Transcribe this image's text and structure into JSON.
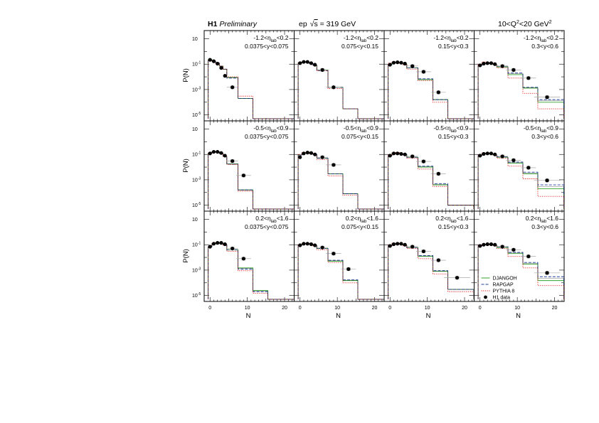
{
  "header": {
    "experiment": "H1",
    "status": "Preliminary",
    "beam": "ep",
    "energy_prefix": "s",
    "energy_value": " = 319 GeV",
    "q2_left": "10<Q",
    "q2_sup": "2",
    "q2_right": "<20 GeV",
    "q2_unit_sup": "2"
  },
  "legend": {
    "entries": [
      "DJANGOH",
      "RAPGAP",
      "PYTHIA 8",
      "H1 data"
    ]
  },
  "colors": {
    "djangoh": "#33a02c",
    "rapgap": "#1f3f9f",
    "pythia": "#e31a1c",
    "data": "#000000",
    "error_band": "#c8c8c8"
  },
  "chart_data": {
    "type": "multi-panel histogram with data points",
    "grid": false,
    "legend_position": "bottom-right panel",
    "xlabel": "N",
    "ylabel": "P(N)",
    "yscale": "log",
    "xlim": [
      -1,
      22
    ],
    "ylim": [
      5e-06,
      30
    ],
    "x_ticks": [
      0,
      10,
      20
    ],
    "y_ticks": [
      "10^-5",
      "10^-3",
      "10^-1",
      "10"
    ],
    "bin_edges": [
      -0.5,
      0.5,
      1.5,
      2.5,
      3.5,
      4.5,
      7.5,
      11.5,
      15.5,
      22.5
    ],
    "series_names": [
      "DJANGOH",
      "RAPGAP",
      "PYTHIA 8",
      "H1 data"
    ],
    "panels": [
      {
        "row": 0,
        "col": 0,
        "eta_lo": "-1.2",
        "eta_hi": "0.2",
        "y_range": "0.0375<y<0.075",
        "djangoh": [
          0.22,
          0.17,
          0.12,
          0.07,
          0.04,
          0.009,
          0.0002,
          0,
          0
        ],
        "rapgap": [
          0.22,
          0.17,
          0.12,
          0.07,
          0.04,
          0.008,
          0.0002,
          0,
          0
        ],
        "pythia": [
          0.22,
          0.17,
          0.12,
          0.07,
          0.04,
          0.01,
          0.0003,
          0,
          0
        ],
        "data_x": [
          0,
          1,
          2,
          3,
          4,
          6
        ],
        "data_y": [
          0.22,
          0.17,
          0.11,
          0.05,
          0.012,
          0.0015
        ]
      },
      {
        "row": 0,
        "col": 1,
        "eta_lo": "-1.2",
        "eta_hi": "0.2",
        "y_range": "0.075<y<0.15",
        "djangoh": [
          0.12,
          0.15,
          0.14,
          0.11,
          0.08,
          0.035,
          0.0015,
          3e-05,
          0
        ],
        "rapgap": [
          0.12,
          0.15,
          0.14,
          0.11,
          0.08,
          0.03,
          0.0015,
          3e-05,
          0
        ],
        "pythia": [
          0.13,
          0.16,
          0.15,
          0.11,
          0.08,
          0.03,
          0.0012,
          3e-05,
          0
        ],
        "data_x": [
          0,
          1,
          2,
          3,
          4,
          6,
          9
        ],
        "data_y": [
          0.12,
          0.15,
          0.15,
          0.12,
          0.09,
          0.035,
          0.0015
        ]
      },
      {
        "row": 0,
        "col": 2,
        "eta_lo": "-1.2",
        "eta_hi": "0.2",
        "y_range": "0.15<y<0.3",
        "djangoh": [
          0.09,
          0.13,
          0.13,
          0.12,
          0.1,
          0.05,
          0.006,
          0.00016,
          5e-06
        ],
        "rapgap": [
          0.09,
          0.13,
          0.13,
          0.12,
          0.1,
          0.05,
          0.007,
          0.00016,
          5e-06
        ],
        "pythia": [
          0.12,
          0.16,
          0.15,
          0.12,
          0.09,
          0.04,
          0.005,
          0.0001,
          5e-06
        ],
        "data_x": [
          0,
          1,
          2,
          3,
          4,
          6,
          9,
          13
        ],
        "data_y": [
          0.09,
          0.13,
          0.14,
          0.13,
          0.11,
          0.07,
          0.025,
          0.0006
        ]
      },
      {
        "row": 0,
        "col": 3,
        "eta_lo": "-1.2",
        "eta_hi": "0.2",
        "y_range": "0.3<y<0.6",
        "djangoh": [
          0.08,
          0.11,
          0.12,
          0.11,
          0.09,
          0.06,
          0.015,
          0.0013,
          0.0001
        ],
        "rapgap": [
          0.08,
          0.11,
          0.12,
          0.11,
          0.09,
          0.07,
          0.02,
          0.0015,
          0.00016
        ],
        "pythia": [
          0.1,
          0.15,
          0.14,
          0.12,
          0.09,
          0.05,
          0.008,
          0.0005,
          3e-05
        ],
        "data_x": [
          0,
          1,
          2,
          3,
          4,
          6,
          9,
          13,
          18
        ],
        "data_y": [
          0.08,
          0.11,
          0.12,
          0.12,
          0.1,
          0.07,
          0.035,
          0.008,
          0.00025
        ]
      },
      {
        "row": 1,
        "col": 0,
        "eta_lo": "-0.5",
        "eta_hi": "0.9",
        "y_range": "0.0375<y<0.075",
        "djangoh": [
          0.12,
          0.16,
          0.16,
          0.12,
          0.07,
          0.018,
          0.00016,
          0,
          0
        ],
        "rapgap": [
          0.12,
          0.16,
          0.16,
          0.12,
          0.07,
          0.017,
          0.00016,
          0,
          0
        ],
        "pythia": [
          0.13,
          0.17,
          0.16,
          0.12,
          0.07,
          0.016,
          0.00013,
          0,
          0
        ],
        "data_x": [
          0,
          1,
          2,
          3,
          4,
          6,
          9
        ],
        "data_y": [
          0.12,
          0.16,
          0.16,
          0.13,
          0.08,
          0.03,
          0.0022
        ]
      },
      {
        "row": 1,
        "col": 1,
        "eta_lo": "-0.5",
        "eta_hi": "0.9",
        "y_range": "0.075<y<0.15",
        "djangoh": [
          0.09,
          0.13,
          0.14,
          0.12,
          0.1,
          0.05,
          0.003,
          8e-05,
          0
        ],
        "rapgap": [
          0.09,
          0.13,
          0.14,
          0.12,
          0.1,
          0.05,
          0.003,
          8e-05,
          0
        ],
        "pythia": [
          0.1,
          0.14,
          0.15,
          0.12,
          0.09,
          0.04,
          0.002,
          6e-05,
          0
        ],
        "data_x": [
          0,
          1,
          2,
          3,
          4,
          6,
          9
        ],
        "data_y": [
          0.06,
          0.12,
          0.14,
          0.13,
          0.1,
          0.06,
          0.015
        ]
      },
      {
        "row": 1,
        "col": 2,
        "eta_lo": "-0.5",
        "eta_hi": "0.9",
        "y_range": "0.15<y<0.3",
        "djangoh": [
          0.08,
          0.12,
          0.12,
          0.11,
          0.1,
          0.06,
          0.01,
          0.0004,
          1e-05
        ],
        "rapgap": [
          0.08,
          0.12,
          0.12,
          0.11,
          0.1,
          0.06,
          0.012,
          0.0005,
          1e-05
        ],
        "pythia": [
          0.09,
          0.13,
          0.14,
          0.12,
          0.09,
          0.05,
          0.007,
          0.0003,
          1e-05
        ],
        "data_x": [
          0,
          1,
          2,
          3,
          4,
          6,
          9,
          13
        ],
        "data_y": [
          0.08,
          0.12,
          0.12,
          0.11,
          0.1,
          0.07,
          0.028,
          0.003
        ]
      },
      {
        "row": 1,
        "col": 3,
        "eta_lo": "-0.5",
        "eta_hi": "0.9",
        "y_range": "0.3<y<0.6",
        "djangoh": [
          0.08,
          0.11,
          0.12,
          0.11,
          0.09,
          0.06,
          0.02,
          0.003,
          0.0002
        ],
        "rapgap": [
          0.08,
          0.11,
          0.12,
          0.11,
          0.09,
          0.065,
          0.025,
          0.004,
          0.0004
        ],
        "pythia": [
          0.09,
          0.13,
          0.13,
          0.11,
          0.09,
          0.05,
          0.012,
          0.0012,
          5e-05
        ],
        "data_x": [
          0,
          1,
          2,
          3,
          4,
          6,
          9,
          13,
          18
        ],
        "data_y": [
          0.08,
          0.11,
          0.12,
          0.12,
          0.1,
          0.07,
          0.035,
          0.009,
          0.0009
        ]
      },
      {
        "row": 2,
        "col": 0,
        "eta_lo": "0.2",
        "eta_hi": "1.6",
        "y_range": "0.0375<y<0.075",
        "djangoh": [
          0.07,
          0.12,
          0.14,
          0.13,
          0.1,
          0.04,
          0.0015,
          2.5e-05,
          0
        ],
        "rapgap": [
          0.07,
          0.12,
          0.14,
          0.13,
          0.1,
          0.04,
          0.0012,
          2e-05,
          0
        ],
        "pythia": [
          0.08,
          0.13,
          0.14,
          0.13,
          0.09,
          0.03,
          0.0009,
          1.5e-05,
          0
        ],
        "data_x": [
          0,
          1,
          2,
          3,
          4,
          6,
          9
        ],
        "data_y": [
          0.07,
          0.12,
          0.14,
          0.14,
          0.11,
          0.05,
          0.008
        ]
      },
      {
        "row": 2,
        "col": 1,
        "eta_lo": "0.2",
        "eta_hi": "1.6",
        "y_range": "0.075<y<0.15",
        "djangoh": [
          0.09,
          0.12,
          0.12,
          0.11,
          0.09,
          0.05,
          0.005,
          0.00015,
          0
        ],
        "rapgap": [
          0.09,
          0.12,
          0.12,
          0.11,
          0.09,
          0.05,
          0.006,
          0.00017,
          0
        ],
        "pythia": [
          0.1,
          0.13,
          0.13,
          0.11,
          0.08,
          0.04,
          0.004,
          0.0001,
          0
        ],
        "data_x": [
          0,
          1,
          2,
          3,
          4,
          6,
          9,
          13
        ],
        "data_y": [
          0.09,
          0.12,
          0.12,
          0.11,
          0.09,
          0.06,
          0.02,
          0.0012
        ]
      },
      {
        "row": 2,
        "col": 2,
        "eta_lo": "0.2",
        "eta_hi": "1.6",
        "y_range": "0.15<y<0.3",
        "djangoh": [
          0.08,
          0.11,
          0.12,
          0.11,
          0.09,
          0.06,
          0.012,
          0.0008,
          3e-05
        ],
        "rapgap": [
          0.08,
          0.11,
          0.12,
          0.11,
          0.09,
          0.06,
          0.014,
          0.0009,
          3e-05
        ],
        "pythia": [
          0.09,
          0.13,
          0.13,
          0.11,
          0.08,
          0.05,
          0.008,
          0.0005,
          2e-05
        ],
        "data_x": [
          0,
          1,
          2,
          3,
          4,
          6,
          9,
          13,
          18
        ],
        "data_y": [
          0.08,
          0.11,
          0.12,
          0.12,
          0.1,
          0.07,
          0.03,
          0.006,
          0.00025
        ]
      },
      {
        "row": 2,
        "col": 3,
        "eta_lo": "0.2",
        "eta_hi": "1.6",
        "y_range": "0.3<y<0.6",
        "djangoh": [
          0.08,
          0.1,
          0.11,
          0.1,
          0.09,
          0.06,
          0.02,
          0.003,
          0.00015
        ],
        "rapgap": [
          0.08,
          0.1,
          0.11,
          0.1,
          0.09,
          0.07,
          0.025,
          0.004,
          0.0003
        ],
        "pythia": [
          0.09,
          0.12,
          0.12,
          0.1,
          0.08,
          0.05,
          0.012,
          0.0015,
          6e-05
        ],
        "data_x": [
          0,
          1,
          2,
          3,
          4,
          6,
          9,
          13,
          18
        ],
        "data_y": [
          0.08,
          0.1,
          0.11,
          0.11,
          0.1,
          0.07,
          0.04,
          0.012,
          0.0006
        ]
      }
    ]
  }
}
